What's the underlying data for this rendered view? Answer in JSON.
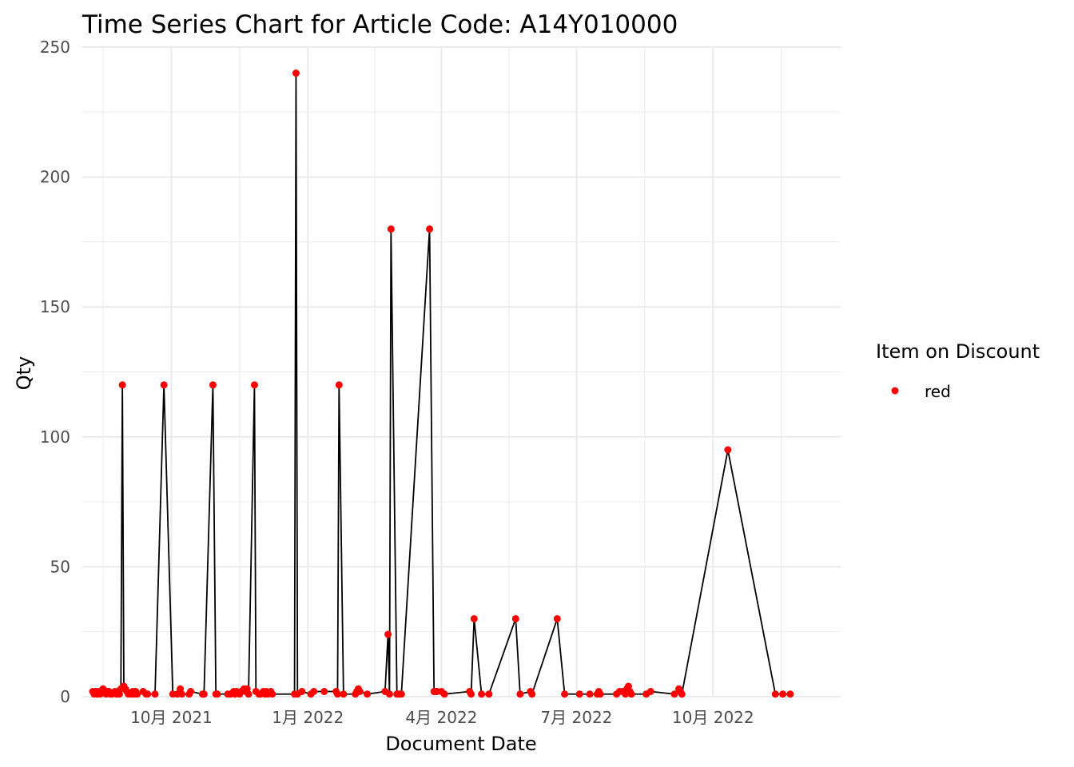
{
  "chart_data": {
    "type": "line",
    "title": "Time Series Chart for Article Code: A14Y010000",
    "xlabel": "Document Date",
    "ylabel": "Qty",
    "ylim": [
      0,
      250
    ],
    "xlim": [
      "2021-08-02",
      "2022-12-26"
    ],
    "yticks": [
      0,
      50,
      100,
      150,
      200,
      250
    ],
    "xticks": [
      {
        "date": "2021-10-01",
        "label": "10月 2021"
      },
      {
        "date": "2022-01-01",
        "label": "1月 2022"
      },
      {
        "date": "2022-04-01",
        "label": "4月 2022"
      },
      {
        "date": "2022-07-01",
        "label": "7月 2022"
      },
      {
        "date": "2022-10-01",
        "label": "10月 2022"
      }
    ],
    "grid": true,
    "legend": {
      "title": "Item on Discount",
      "position": "right",
      "entries": [
        {
          "label": "red",
          "color": "#ff0000"
        }
      ]
    },
    "line_color": "#000000",
    "point_color": "#ff0000",
    "series": [
      {
        "values": [
          [
            "2021-08-09",
            2
          ],
          [
            "2021-08-10",
            1
          ],
          [
            "2021-08-11",
            2
          ],
          [
            "2021-08-12",
            1
          ],
          [
            "2021-08-13",
            2
          ],
          [
            "2021-08-14",
            1
          ],
          [
            "2021-08-15",
            2
          ],
          [
            "2021-08-16",
            3
          ],
          [
            "2021-08-17",
            2
          ],
          [
            "2021-08-18",
            1
          ],
          [
            "2021-08-19",
            2
          ],
          [
            "2021-08-20",
            2
          ],
          [
            "2021-08-21",
            1
          ],
          [
            "2021-08-22",
            1
          ],
          [
            "2021-08-24",
            2
          ],
          [
            "2021-08-25",
            1
          ],
          [
            "2021-08-26",
            2
          ],
          [
            "2021-08-27",
            1
          ],
          [
            "2021-08-28",
            3
          ],
          [
            "2021-08-29",
            120
          ],
          [
            "2021-08-30",
            4
          ],
          [
            "2021-08-31",
            3
          ],
          [
            "2021-09-01",
            2
          ],
          [
            "2021-09-02",
            1
          ],
          [
            "2021-09-04",
            1
          ],
          [
            "2021-09-05",
            2
          ],
          [
            "2021-09-06",
            1
          ],
          [
            "2021-09-07",
            2
          ],
          [
            "2021-09-08",
            1
          ],
          [
            "2021-09-12",
            2
          ],
          [
            "2021-09-14",
            1
          ],
          [
            "2021-09-15",
            1
          ],
          [
            "2021-09-20",
            1
          ],
          [
            "2021-09-26",
            120
          ],
          [
            "2021-10-02",
            1
          ],
          [
            "2021-10-05",
            1
          ],
          [
            "2021-10-07",
            3
          ],
          [
            "2021-10-08",
            1
          ],
          [
            "2021-10-13",
            1
          ],
          [
            "2021-10-14",
            2
          ],
          [
            "2021-10-22",
            1
          ],
          [
            "2021-10-23",
            1
          ],
          [
            "2021-10-29",
            120
          ],
          [
            "2021-10-31",
            1
          ],
          [
            "2021-11-01",
            1
          ],
          [
            "2021-11-08",
            1
          ],
          [
            "2021-11-10",
            1
          ],
          [
            "2021-11-12",
            2
          ],
          [
            "2021-11-13",
            1
          ],
          [
            "2021-11-14",
            2
          ],
          [
            "2021-11-16",
            1
          ],
          [
            "2021-11-17",
            2
          ],
          [
            "2021-11-19",
            3
          ],
          [
            "2021-11-20",
            2
          ],
          [
            "2021-11-21",
            3
          ],
          [
            "2021-11-22",
            1
          ],
          [
            "2021-11-26",
            120
          ],
          [
            "2021-11-27",
            2
          ],
          [
            "2021-11-29",
            1
          ],
          [
            "2021-11-30",
            1
          ],
          [
            "2021-12-02",
            2
          ],
          [
            "2021-12-03",
            1
          ],
          [
            "2021-12-04",
            2
          ],
          [
            "2021-12-05",
            1
          ],
          [
            "2021-12-07",
            2
          ],
          [
            "2021-12-08",
            1
          ],
          [
            "2021-12-23",
            1
          ],
          [
            "2021-12-24",
            240
          ],
          [
            "2021-12-25",
            1
          ],
          [
            "2021-12-28",
            2
          ],
          [
            "2022-01-03",
            1
          ],
          [
            "2022-01-05",
            2
          ],
          [
            "2022-01-12",
            2
          ],
          [
            "2022-01-20",
            2
          ],
          [
            "2022-01-21",
            1
          ],
          [
            "2022-01-22",
            120
          ],
          [
            "2022-01-25",
            1
          ],
          [
            "2022-02-02",
            1
          ],
          [
            "2022-02-03",
            2
          ],
          [
            "2022-02-04",
            3
          ],
          [
            "2022-02-05",
            2
          ],
          [
            "2022-02-10",
            1
          ],
          [
            "2022-02-22",
            2
          ],
          [
            "2022-02-24",
            24
          ],
          [
            "2022-02-25",
            1
          ],
          [
            "2022-02-26",
            180
          ],
          [
            "2022-03-02",
            1
          ],
          [
            "2022-03-03",
            1
          ],
          [
            "2022-03-04",
            1
          ],
          [
            "2022-03-05",
            1
          ],
          [
            "2022-03-24",
            180
          ],
          [
            "2022-03-27",
            2
          ],
          [
            "2022-03-28",
            2
          ],
          [
            "2022-03-29",
            2
          ],
          [
            "2022-04-01",
            2
          ],
          [
            "2022-04-03",
            1
          ],
          [
            "2022-04-20",
            2
          ],
          [
            "2022-04-21",
            1
          ],
          [
            "2022-04-23",
            30
          ],
          [
            "2022-04-28",
            1
          ],
          [
            "2022-05-03",
            1
          ],
          [
            "2022-05-21",
            30
          ],
          [
            "2022-05-24",
            1
          ],
          [
            "2022-05-31",
            2
          ],
          [
            "2022-06-01",
            1
          ],
          [
            "2022-06-18",
            30
          ],
          [
            "2022-06-23",
            1
          ],
          [
            "2022-07-03",
            1
          ],
          [
            "2022-07-10",
            1
          ],
          [
            "2022-07-15",
            1
          ],
          [
            "2022-07-16",
            2
          ],
          [
            "2022-07-17",
            1
          ],
          [
            "2022-07-28",
            1
          ],
          [
            "2022-07-30",
            2
          ],
          [
            "2022-08-01",
            2
          ],
          [
            "2022-08-02",
            2
          ],
          [
            "2022-08-03",
            1
          ],
          [
            "2022-08-04",
            3
          ],
          [
            "2022-08-05",
            4
          ],
          [
            "2022-08-06",
            2
          ],
          [
            "2022-08-07",
            1
          ],
          [
            "2022-08-17",
            1
          ],
          [
            "2022-08-20",
            2
          ],
          [
            "2022-09-05",
            1
          ],
          [
            "2022-09-08",
            3
          ],
          [
            "2022-09-09",
            2
          ],
          [
            "2022-09-10",
            1
          ],
          [
            "2022-10-11",
            95
          ],
          [
            "2022-11-12",
            1
          ],
          [
            "2022-11-17",
            1
          ],
          [
            "2022-11-22",
            1
          ]
        ]
      }
    ]
  }
}
